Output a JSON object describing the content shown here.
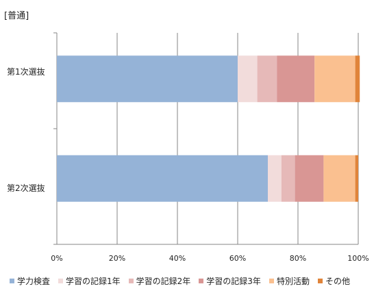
{
  "chart_data": {
    "type": "bar",
    "orientation": "horizontal",
    "stacked": "percent",
    "title": "[普通]",
    "categories": [
      "第1次選抜",
      "第2次選抜"
    ],
    "series": [
      {
        "name": "学力検査",
        "values": [
          60,
          70
        ],
        "color": "#95b3d7"
      },
      {
        "name": "学習の記録1年",
        "values": [
          6.5,
          4.5
        ],
        "color": "#f2dcdb"
      },
      {
        "name": "学習の記録2年",
        "values": [
          6.5,
          4.5
        ],
        "color": "#e6b9b8"
      },
      {
        "name": "学習の記録3年",
        "values": [
          12.5,
          9.5
        ],
        "color": "#d99694"
      },
      {
        "name": "特別活動",
        "values": [
          13.5,
          10.5
        ],
        "color": "#fac090"
      },
      {
        "name": "その他",
        "values": [
          1.5,
          1
        ],
        "color": "#e0843a"
      }
    ],
    "xlim": [
      0,
      100
    ],
    "xticks": [
      "0%",
      "20%",
      "40%",
      "60%",
      "80%",
      "100%"
    ],
    "grid": true,
    "legend": "bottom"
  }
}
